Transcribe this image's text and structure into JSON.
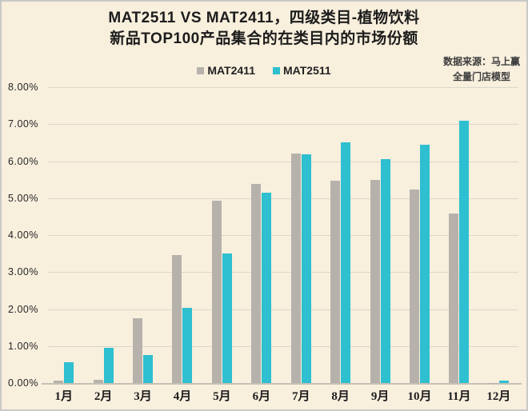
{
  "title": {
    "line1": "MAT2511 VS MAT2411，四级类目-植物饮料",
    "line2": "新品TOP100产品集合的在类目内的市场份额"
  },
  "source_note": {
    "line1": "数据来源：马上赢",
    "line2": "全量门店模型"
  },
  "colors": {
    "background": "#f8efdd",
    "frame_border": "#c9c9c9",
    "gridline": "#dcd7cb",
    "axis_line": "#c6c1b5",
    "title_text": "#1c1c1c",
    "mat2411_gray": "#b6b2ab",
    "mat2511_cyan": "#2ebfd0"
  },
  "chart_data": {
    "type": "bar",
    "title": "MAT2511 VS MAT2411，四级类目-植物饮料 新品TOP100产品集合的在类目内的市场份额",
    "xlabel": "",
    "ylabel": "",
    "categories": [
      "1月",
      "2月",
      "3月",
      "4月",
      "5月",
      "6月",
      "7月",
      "8月",
      "9月",
      "10月",
      "11月",
      "12月"
    ],
    "series": [
      {
        "name": "MAT2411",
        "color": "#b6b2ab",
        "values": [
          0.07,
          0.09,
          1.75,
          3.46,
          4.92,
          5.38,
          6.21,
          5.48,
          5.5,
          5.23,
          4.58,
          0.01
        ]
      },
      {
        "name": "MAT2511",
        "color": "#2ebfd0",
        "values": [
          0.57,
          0.95,
          0.75,
          2.03,
          3.51,
          5.14,
          6.18,
          6.51,
          6.06,
          6.45,
          7.1,
          0.06
        ]
      }
    ],
    "unit": "%",
    "ylim": [
      0,
      8
    ],
    "ytick_labels": [
      "0.00%",
      "1.00%",
      "2.00%",
      "3.00%",
      "4.00%",
      "5.00%",
      "6.00%",
      "7.00%",
      "8.00%"
    ],
    "grid": "horizontal",
    "legend_position": "top-center"
  }
}
